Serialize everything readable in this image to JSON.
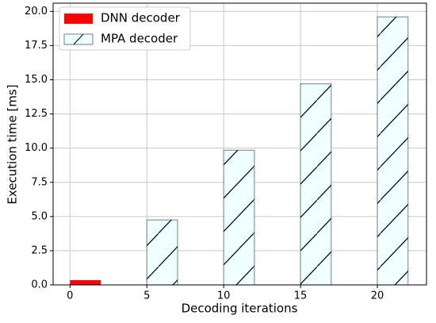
{
  "chart_data": {
    "type": "bar",
    "xlabel": "Decoding iterations",
    "ylabel": "Execution time [ms]",
    "xlim": [
      -1.1,
      23.2
    ],
    "xticks": [
      0,
      5,
      10,
      15,
      20
    ],
    "ylim": [
      0,
      20.6
    ],
    "yticks": [
      {
        "value": 0,
        "label": "0.0"
      },
      {
        "value": 2.5,
        "label": "2.5"
      },
      {
        "value": 5,
        "label": "5.0"
      },
      {
        "value": 7.5,
        "label": "7.5"
      },
      {
        "value": 10,
        "label": "10.0"
      },
      {
        "value": 12.5,
        "label": "12.5"
      },
      {
        "value": 15,
        "label": "15.0"
      },
      {
        "value": 17.5,
        "label": "17.5"
      },
      {
        "value": 20,
        "label": "20.0"
      }
    ],
    "grid": true,
    "legend": "upper left",
    "series": [
      {
        "name": "DNN decoder",
        "color": "#ff0000",
        "x": [
          0
        ],
        "values": [
          0.35
        ]
      },
      {
        "name": "MPA decoder",
        "color": "#f0ffff",
        "hatch": "/",
        "x": [
          5,
          10,
          15,
          20
        ],
        "values": [
          4.75,
          9.85,
          14.7,
          19.6
        ]
      }
    ]
  }
}
